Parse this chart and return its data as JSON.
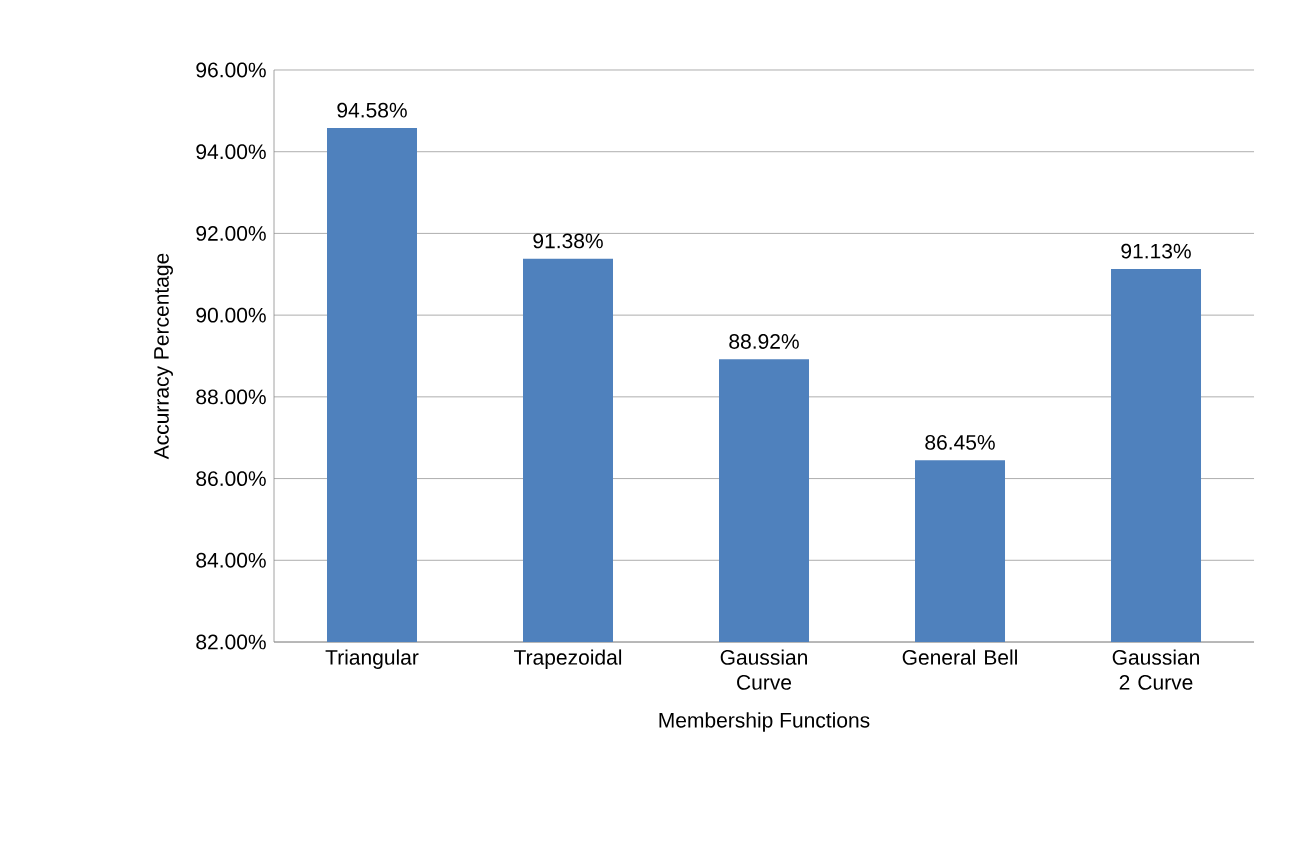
{
  "chart_data": {
    "type": "bar",
    "xlabel": "Membership Functions",
    "ylabel": "Accurracy Percentage",
    "categories": [
      "Triangular",
      "Trapezoidal",
      "Gaussian Curve",
      "General Bell",
      "Gaussian 2 Curve"
    ],
    "values": [
      94.58,
      91.38,
      88.92,
      86.45,
      91.13
    ],
    "value_labels": [
      "94.58%",
      "91.38%",
      "88.92%",
      "86.45%",
      "91.13%"
    ],
    "color": "#4f81bd",
    "ylim": [
      82,
      96
    ],
    "yticks": [
      {
        "value": 82,
        "label": "82.00%"
      },
      {
        "value": 84,
        "label": "84.00%"
      },
      {
        "value": 86,
        "label": "86.00%"
      },
      {
        "value": 88,
        "label": "88.00%"
      },
      {
        "value": 90,
        "label": "90.00%"
      },
      {
        "value": 92,
        "label": "92.00%"
      },
      {
        "value": 94,
        "label": "94.00%"
      },
      {
        "value": 96,
        "label": "96.00%"
      }
    ],
    "grid": "y"
  }
}
